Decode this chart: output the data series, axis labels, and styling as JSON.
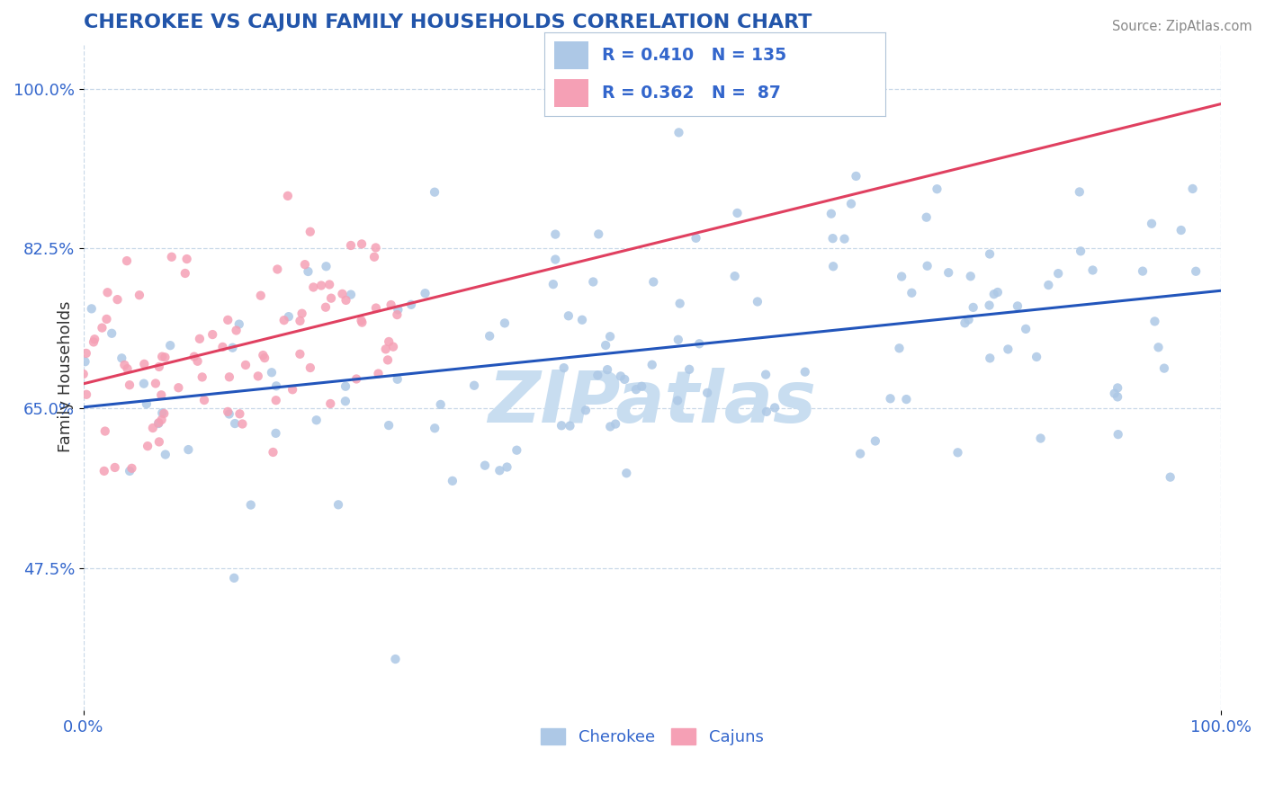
{
  "title": "CHEROKEE VS CAJUN FAMILY HOUSEHOLDS CORRELATION CHART",
  "source": "Source: ZipAtlas.com",
  "ylabel": "Family Households",
  "xlim": [
    0.0,
    1.0
  ],
  "ylim": [
    0.32,
    1.05
  ],
  "yticks": [
    0.475,
    0.65,
    0.825,
    1.0
  ],
  "ytick_labels": [
    "47.5%",
    "65.0%",
    "82.5%",
    "100.0%"
  ],
  "xtick_labels": [
    "0.0%",
    "100.0%"
  ],
  "cherokee_R": 0.41,
  "cherokee_N": 135,
  "cajun_R": 0.362,
  "cajun_N": 87,
  "cherokee_color": "#adc8e6",
  "cajun_color": "#f5a0b5",
  "cherokee_line_color": "#2255bb",
  "cajun_line_color": "#e04060",
  "legend_text_color": "#3366cc",
  "title_color": "#2255aa",
  "axis_color": "#3366cc",
  "ylabel_color": "#333333",
  "watermark_color": "#c8ddf0",
  "background_color": "#ffffff",
  "grid_color": "#c8d8e8",
  "seed_cherokee": 7,
  "seed_cajun": 13
}
